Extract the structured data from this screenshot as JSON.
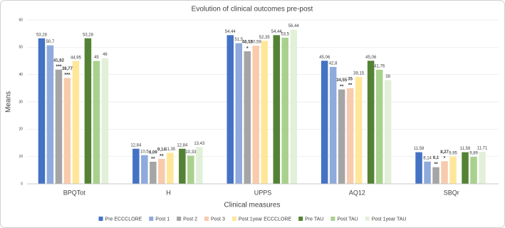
{
  "chart_data": {
    "type": "bar",
    "title": "Evolution of clinical outcomes pre-post",
    "x_label": "Clinical measures",
    "y_label": "Means",
    "categories": [
      "BPQTot",
      "H",
      "UPPS",
      "AQ12",
      "SBQr"
    ],
    "ylim": [
      0,
      60
    ],
    "yticks": [
      0,
      10,
      20,
      30,
      40,
      50,
      60
    ],
    "grid": true,
    "legend": "bottom",
    "series": [
      {
        "name": "Pre ECCCLORE",
        "color": "#4472c4",
        "values": [
          53.28,
          12.84,
          54.44,
          45.06,
          11.58
        ],
        "value_labels": [
          "53,28",
          "12,84",
          "54,44",
          "45,06",
          "11,58"
        ],
        "significance": [
          null,
          null,
          null,
          null,
          null
        ]
      },
      {
        "name": "Post 1",
        "color": "#8faadc",
        "values": [
          50.7,
          10.5,
          51.5,
          42.8,
          8.14
        ],
        "value_labels": [
          "50,7",
          "10,5",
          "51,5",
          "42,8",
          "8,14"
        ],
        "significance": [
          null,
          null,
          null,
          null,
          null
        ]
      },
      {
        "name": "Post 2",
        "color": "#a5a5a5",
        "values": [
          41.82,
          8.09,
          48.52,
          34.55,
          6.1
        ],
        "value_labels": [
          "41,82",
          "8,09",
          "48,52",
          "34,55",
          "6,1"
        ],
        "significance": [
          "***",
          "**",
          "*",
          "**",
          "**"
        ]
      },
      {
        "name": "Post 3",
        "color": "#f8cbad",
        "values": [
          38.77,
          9.14,
          50.59,
          35,
          8.27
        ],
        "value_labels": [
          "38,77",
          "9,14",
          "50,59",
          "35",
          "8,27"
        ],
        "significance": [
          "***",
          "**",
          null,
          "**",
          "*"
        ]
      },
      {
        "name": "Post 1year ECCCLORE",
        "color": "#ffe699",
        "values": [
          44.95,
          11.35,
          52.35,
          39.15,
          9.95
        ],
        "value_labels": [
          "44,95",
          "11,35",
          "52,35",
          "39,15",
          "9,95"
        ],
        "significance": [
          null,
          null,
          null,
          null,
          null
        ]
      },
      {
        "name": "Pre TAU",
        "color": "#548235",
        "values": [
          53.28,
          12.84,
          54.44,
          45.06,
          11.58
        ],
        "value_labels": [
          "53,28",
          "12,84",
          "54,44",
          "45,06",
          "11,58"
        ],
        "significance": [
          null,
          null,
          null,
          null,
          null
        ]
      },
      {
        "name": "Post TAU",
        "color": "#a9d18e",
        "values": [
          45,
          10.33,
          53.5,
          41.76,
          9.89
        ],
        "value_labels": [
          "45",
          "10,33",
          "53,5",
          "41,76",
          "9,89"
        ],
        "significance": [
          null,
          null,
          null,
          null,
          null
        ]
      },
      {
        "name": "Post 1year TAU",
        "color": "#e2f0d9",
        "values": [
          46,
          13.43,
          56.44,
          38,
          11.71
        ],
        "value_labels": [
          "46",
          "13,43",
          "56,44",
          "38",
          "11,71"
        ],
        "significance": [
          null,
          null,
          null,
          null,
          null
        ]
      }
    ]
  }
}
